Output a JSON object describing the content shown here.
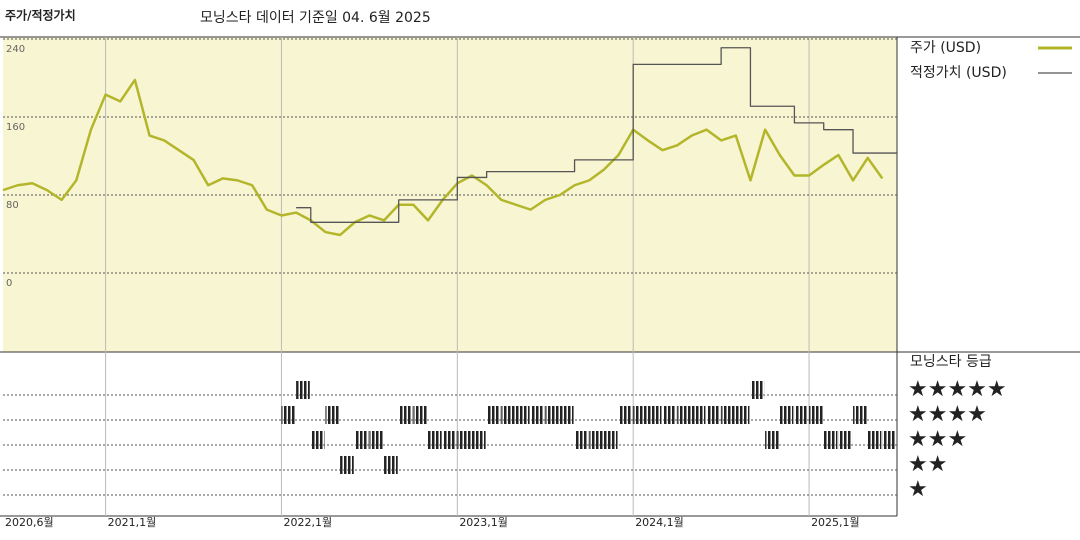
{
  "chart_data": [
    {
      "type": "line",
      "title": "주가/적정가치",
      "subtitle": "모닝스타 데이터 기준일 04. 6월 2025",
      "x": [
        "2020-06",
        "2020-07",
        "2020-08",
        "2020-09",
        "2020-10",
        "2020-11",
        "2020-12",
        "2021-01",
        "2021-02",
        "2021-03",
        "2021-04",
        "2021-05",
        "2021-06",
        "2021-07",
        "2021-08",
        "2021-09",
        "2021-10",
        "2021-11",
        "2021-12",
        "2022-01",
        "2022-02",
        "2022-03",
        "2022-04",
        "2022-05",
        "2022-06",
        "2022-07",
        "2022-08",
        "2022-09",
        "2022-10",
        "2022-11",
        "2022-12",
        "2023-01",
        "2023-02",
        "2023-03",
        "2023-04",
        "2023-05",
        "2023-06",
        "2023-07",
        "2023-08",
        "2023-09",
        "2023-10",
        "2023-11",
        "2023-12",
        "2024-01",
        "2024-02",
        "2024-03",
        "2024-04",
        "2024-05",
        "2024-06",
        "2024-07",
        "2024-08",
        "2024-09",
        "2024-10",
        "2024-11",
        "2024-12",
        "2025-01",
        "2025-02",
        "2025-03",
        "2025-04",
        "2025-05",
        "2025-06"
      ],
      "series": [
        {
          "name": "주가 (USD)",
          "color": "#b3b62a",
          "values": [
            85,
            90,
            92,
            85,
            75,
            95,
            147,
            183,
            176,
            198,
            141,
            136,
            126,
            116,
            90,
            97,
            95,
            90,
            65,
            59,
            62,
            54,
            42,
            39,
            52,
            59,
            54,
            70,
            70,
            54,
            75,
            92,
            100,
            90,
            75,
            70,
            65,
            75,
            80,
            90,
            95,
            106,
            121,
            147,
            136,
            126,
            131,
            141,
            147,
            136,
            141,
            95,
            147,
            121,
            100,
            100,
            111,
            121,
            95,
            118,
            97
          ]
        },
        {
          "name": "적정가치 (USD)",
          "color": "#555555",
          "step": true,
          "values": [
            null,
            null,
            null,
            null,
            null,
            null,
            null,
            null,
            null,
            null,
            null,
            null,
            null,
            null,
            null,
            null,
            null,
            null,
            null,
            null,
            67,
            52,
            52,
            52,
            52,
            52,
            52,
            75,
            75,
            75,
            75,
            98,
            98,
            104,
            104,
            104,
            104,
            104,
            104,
            116,
            116,
            116,
            116,
            214,
            214,
            214,
            214,
            214,
            214,
            231,
            231,
            171,
            171,
            171,
            154,
            154,
            147,
            147,
            123,
            123,
            123
          ]
        }
      ],
      "ylim": [
        -80,
        240
      ],
      "yticks": [
        0,
        80,
        160,
        240
      ],
      "xlim": [
        "2020-06",
        "2025-07"
      ],
      "xticks": [
        {
          "value": "2020-06",
          "label": "2020,6월"
        },
        {
          "value": "2021-01",
          "label": "2021,1월"
        },
        {
          "value": "2022-01",
          "label": "2022,1월"
        },
        {
          "value": "2023-01",
          "label": "2023,1월"
        },
        {
          "value": "2024-01",
          "label": "2024,1월"
        },
        {
          "value": "2025-01",
          "label": "2025,1월"
        }
      ],
      "grid": true,
      "background": "#f8f5d2",
      "legend": "right"
    },
    {
      "type": "rating",
      "title": "모닝스타 등급",
      "x": [
        "2022-01",
        "2022-02",
        "2022-03",
        "2022-04",
        "2022-05",
        "2022-06",
        "2022-07",
        "2022-08",
        "2022-09",
        "2022-10",
        "2022-11",
        "2022-12",
        "2023-01",
        "2023-02",
        "2023-03",
        "2023-04",
        "2023-05",
        "2023-06",
        "2023-07",
        "2023-08",
        "2023-09",
        "2023-10",
        "2023-11",
        "2023-12",
        "2024-01",
        "2024-02",
        "2024-03",
        "2024-04",
        "2024-05",
        "2024-06",
        "2024-07",
        "2024-08",
        "2024-09",
        "2024-10",
        "2024-11",
        "2024-12",
        "2025-01",
        "2025-02",
        "2025-03",
        "2025-04",
        "2025-05",
        "2025-06"
      ],
      "values": [
        4,
        5,
        3,
        4,
        2,
        3,
        3,
        2,
        4,
        4,
        3,
        3,
        3,
        3,
        4,
        4,
        4,
        4,
        4,
        4,
        3,
        3,
        3,
        4,
        4,
        4,
        4,
        4,
        4,
        4,
        4,
        4,
        5,
        3,
        4,
        4,
        4,
        3,
        3,
        4,
        3,
        3
      ],
      "levels": [
        5,
        4,
        3,
        2,
        1
      ],
      "level_labels": [
        "★★★★★",
        "★★★★",
        "★★★",
        "★★",
        "★"
      ],
      "color": "#222222"
    }
  ]
}
